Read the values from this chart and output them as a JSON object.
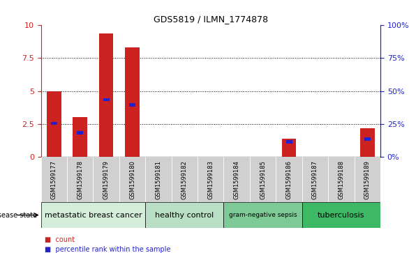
{
  "title": "GDS5819 / ILMN_1774878",
  "samples": [
    "GSM1599177",
    "GSM1599178",
    "GSM1599179",
    "GSM1599180",
    "GSM1599181",
    "GSM1599182",
    "GSM1599183",
    "GSM1599184",
    "GSM1599185",
    "GSM1599186",
    "GSM1599187",
    "GSM1599188",
    "GSM1599189"
  ],
  "count_values": [
    5.0,
    3.0,
    9.4,
    8.3,
    0.0,
    0.0,
    0.0,
    0.0,
    0.0,
    1.4,
    0.0,
    0.0,
    2.2
  ],
  "percentile_values": [
    26,
    19,
    44,
    40,
    0,
    0,
    0,
    0,
    0,
    12,
    0,
    0,
    14
  ],
  "disease_groups": [
    {
      "label": "metastatic breast cancer",
      "start": 0,
      "end": 4,
      "color": "#d4edda"
    },
    {
      "label": "healthy control",
      "start": 4,
      "end": 7,
      "color": "#b8dfc4"
    },
    {
      "label": "gram-negative sepsis",
      "start": 7,
      "end": 10,
      "color": "#7dca96"
    },
    {
      "label": "tuberculosis",
      "start": 10,
      "end": 13,
      "color": "#3db865"
    }
  ],
  "ylim_left": [
    0,
    10
  ],
  "ylim_right": [
    0,
    100
  ],
  "yticks_left": [
    0,
    2.5,
    5,
    7.5,
    10
  ],
  "yticks_right": [
    0,
    25,
    50,
    75,
    100
  ],
  "bar_color": "#cc2222",
  "percentile_color": "#2222cc",
  "bar_width": 0.55,
  "left_axis_color": "#cc2222",
  "right_axis_color": "#2222cc",
  "col_bg_color": "#d0d0d0"
}
